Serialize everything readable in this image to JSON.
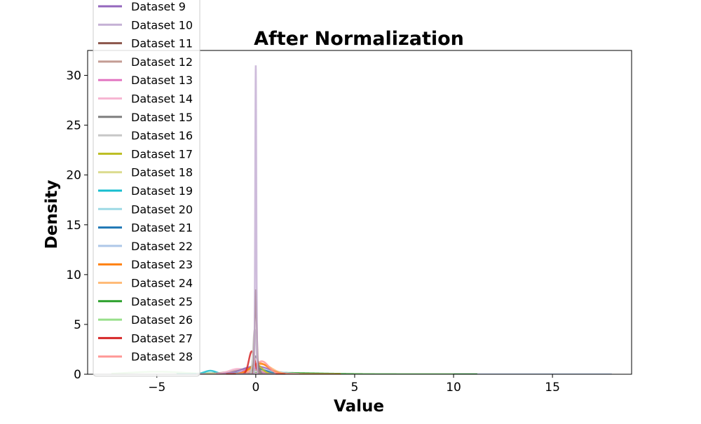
{
  "chart_data": {
    "type": "line",
    "title": "After Normalization",
    "xlabel": "Value",
    "ylabel": "Density",
    "xlim": [
      -8.5,
      19.0
    ],
    "ylim": [
      0,
      32.5
    ],
    "x_ticks": [
      {
        "value": -5,
        "label": "−5"
      },
      {
        "value": 0,
        "label": "0"
      },
      {
        "value": 5,
        "label": "5"
      },
      {
        "value": 10,
        "label": "10"
      },
      {
        "value": 15,
        "label": "15"
      }
    ],
    "y_ticks": [
      {
        "value": 0,
        "label": "0"
      },
      {
        "value": 5,
        "label": "5"
      },
      {
        "value": 10,
        "label": "10"
      },
      {
        "value": 15,
        "label": "15"
      },
      {
        "value": 20,
        "label": "20"
      },
      {
        "value": 25,
        "label": "25"
      },
      {
        "value": 30,
        "label": "30"
      }
    ],
    "grid": false,
    "legend_position": "upper-left",
    "series": [
      {
        "name": "Dataset 9",
        "color": "#9467bd",
        "center": 0.0,
        "width": 0.7,
        "peak": 0.8,
        "range": [
          -2,
          2
        ]
      },
      {
        "name": "Dataset 10",
        "color": "#c5b0d5",
        "center": 0.0,
        "width": 0.03,
        "peak": 31.0,
        "range": [
          -1,
          1
        ]
      },
      {
        "name": "Dataset 11",
        "color": "#8c564b",
        "center": 0.0,
        "width": 0.05,
        "peak": 8.5,
        "range": [
          -1,
          1
        ]
      },
      {
        "name": "Dataset 12",
        "color": "#c49c94",
        "center": -0.5,
        "width": 0.8,
        "peak": 0.5,
        "range": [
          -3,
          2
        ]
      },
      {
        "name": "Dataset 13",
        "color": "#e377c2",
        "center": -0.2,
        "width": 0.35,
        "peak": 0.7,
        "range": [
          -1.5,
          1.5
        ]
      },
      {
        "name": "Dataset 14",
        "color": "#f7b6d2",
        "center": -0.9,
        "width": 0.45,
        "peak": 0.55,
        "range": [
          -3,
          1
        ]
      },
      {
        "name": "Dataset 15",
        "color": "#7f7f7f",
        "center": 0.0,
        "width": 0.12,
        "peak": 1.8,
        "range": [
          -1,
          1
        ]
      },
      {
        "name": "Dataset 16",
        "color": "#c7c7c7",
        "center": -0.05,
        "width": 0.08,
        "peak": 4.5,
        "range": [
          -1,
          1
        ]
      },
      {
        "name": "Dataset 17",
        "color": "#bcbd22",
        "center": 0.0,
        "width": 0.3,
        "peak": 1.0,
        "range": [
          -1.5,
          1.5
        ]
      },
      {
        "name": "Dataset 18",
        "color": "#dbdb8d",
        "center": -0.3,
        "width": 0.6,
        "peak": 0.6,
        "range": [
          -2.5,
          2
        ]
      },
      {
        "name": "Dataset 19",
        "color": "#17becf",
        "center": -2.3,
        "width": 0.3,
        "peak": 0.35,
        "range": [
          -4,
          0
        ]
      },
      {
        "name": "Dataset 20",
        "color": "#9edae5",
        "center": 0.2,
        "width": 0.9,
        "peak": 0.4,
        "range": [
          -3,
          4
        ]
      },
      {
        "name": "Dataset 21",
        "color": "#1f77b4",
        "center": 0.0,
        "width": 0.5,
        "peak": 0.6,
        "range": [
          -2,
          2
        ]
      },
      {
        "name": "Dataset 22",
        "color": "#aec7e8",
        "center": 0.5,
        "width": 3.0,
        "peak": 0.06,
        "range": [
          -3,
          18
        ]
      },
      {
        "name": "Dataset 23",
        "color": "#ff7f0e",
        "center": 0.2,
        "width": 0.45,
        "peak": 1.1,
        "range": [
          -1.5,
          4.3
        ]
      },
      {
        "name": "Dataset 24",
        "color": "#ffbb78",
        "center": 0.3,
        "width": 0.5,
        "peak": 1.0,
        "range": [
          -1.5,
          2
        ]
      },
      {
        "name": "Dataset 25",
        "color": "#2ca02c",
        "center": 0.5,
        "width": 2.5,
        "peak": 0.15,
        "range": [
          -4,
          11.2
        ]
      },
      {
        "name": "Dataset 26",
        "color": "#98df8a",
        "center": -5.0,
        "width": 1.4,
        "peak": 0.25,
        "range": [
          -7.3,
          10
        ]
      },
      {
        "name": "Dataset 27",
        "color": "#d62728",
        "center": -0.2,
        "width": 0.15,
        "peak": 2.3,
        "range": [
          -1.5,
          1.5
        ]
      },
      {
        "name": "Dataset 28",
        "color": "#ff9896",
        "center": 0.3,
        "width": 0.35,
        "peak": 1.3,
        "range": [
          -2,
          2.2
        ]
      }
    ]
  }
}
